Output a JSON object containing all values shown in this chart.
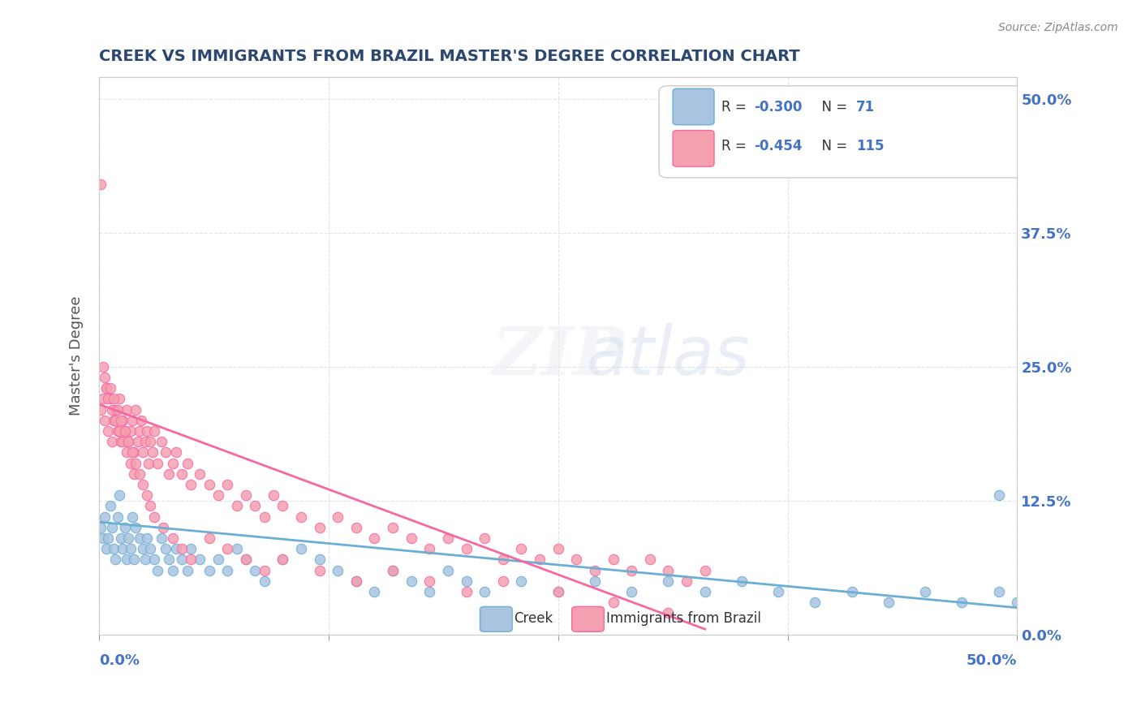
{
  "title": "CREEK VS IMMIGRANTS FROM BRAZIL MASTER'S DEGREE CORRELATION CHART",
  "source": "Source: ZipAtlas.com",
  "ylabel": "Master's Degree",
  "y_tick_labels": [
    "0.0%",
    "12.5%",
    "25.0%",
    "37.5%",
    "50.0%"
  ],
  "y_tick_vals": [
    0,
    0.125,
    0.25,
    0.375,
    0.5
  ],
  "xlim": [
    0.0,
    0.5
  ],
  "ylim": [
    0.0,
    0.52
  ],
  "creek_color": "#a8c4e0",
  "brazil_color": "#f4a0b0",
  "creek_line_color": "#6baed6",
  "brazil_line_color": "#f768a1",
  "creek_R": -0.3,
  "creek_N": 71,
  "brazil_R": -0.454,
  "brazil_N": 115,
  "background_color": "#ffffff",
  "title_color": "#2c4770",
  "axis_label_color": "#4472c4",
  "creek_scatter": {
    "x": [
      0.001,
      0.002,
      0.003,
      0.004,
      0.005,
      0.006,
      0.007,
      0.008,
      0.009,
      0.01,
      0.011,
      0.012,
      0.013,
      0.014,
      0.015,
      0.016,
      0.017,
      0.018,
      0.019,
      0.02,
      0.022,
      0.024,
      0.025,
      0.026,
      0.028,
      0.03,
      0.032,
      0.034,
      0.036,
      0.038,
      0.04,
      0.042,
      0.045,
      0.048,
      0.05,
      0.055,
      0.06,
      0.065,
      0.07,
      0.075,
      0.08,
      0.085,
      0.09,
      0.1,
      0.11,
      0.12,
      0.13,
      0.14,
      0.15,
      0.16,
      0.17,
      0.18,
      0.19,
      0.2,
      0.21,
      0.23,
      0.25,
      0.27,
      0.29,
      0.31,
      0.33,
      0.35,
      0.37,
      0.39,
      0.41,
      0.43,
      0.45,
      0.47,
      0.49,
      0.5,
      0.49
    ],
    "y": [
      0.1,
      0.09,
      0.11,
      0.08,
      0.09,
      0.12,
      0.1,
      0.08,
      0.07,
      0.11,
      0.13,
      0.09,
      0.08,
      0.1,
      0.07,
      0.09,
      0.08,
      0.11,
      0.07,
      0.1,
      0.09,
      0.08,
      0.07,
      0.09,
      0.08,
      0.07,
      0.06,
      0.09,
      0.08,
      0.07,
      0.06,
      0.08,
      0.07,
      0.06,
      0.08,
      0.07,
      0.06,
      0.07,
      0.06,
      0.08,
      0.07,
      0.06,
      0.05,
      0.07,
      0.08,
      0.07,
      0.06,
      0.05,
      0.04,
      0.06,
      0.05,
      0.04,
      0.06,
      0.05,
      0.04,
      0.05,
      0.04,
      0.05,
      0.04,
      0.05,
      0.04,
      0.05,
      0.04,
      0.03,
      0.04,
      0.03,
      0.04,
      0.03,
      0.04,
      0.03,
      0.13
    ]
  },
  "brazil_scatter": {
    "x": [
      0.001,
      0.002,
      0.003,
      0.004,
      0.005,
      0.006,
      0.007,
      0.008,
      0.009,
      0.01,
      0.011,
      0.012,
      0.013,
      0.014,
      0.015,
      0.016,
      0.017,
      0.018,
      0.019,
      0.02,
      0.021,
      0.022,
      0.023,
      0.024,
      0.025,
      0.026,
      0.027,
      0.028,
      0.029,
      0.03,
      0.032,
      0.034,
      0.036,
      0.038,
      0.04,
      0.042,
      0.045,
      0.048,
      0.05,
      0.055,
      0.06,
      0.065,
      0.07,
      0.075,
      0.08,
      0.085,
      0.09,
      0.095,
      0.1,
      0.11,
      0.12,
      0.13,
      0.14,
      0.15,
      0.16,
      0.17,
      0.18,
      0.19,
      0.2,
      0.21,
      0.22,
      0.23,
      0.24,
      0.25,
      0.26,
      0.27,
      0.28,
      0.29,
      0.3,
      0.31,
      0.32,
      0.33,
      0.002,
      0.003,
      0.004,
      0.005,
      0.006,
      0.007,
      0.008,
      0.009,
      0.01,
      0.011,
      0.012,
      0.013,
      0.014,
      0.015,
      0.016,
      0.017,
      0.018,
      0.019,
      0.02,
      0.022,
      0.024,
      0.026,
      0.028,
      0.03,
      0.035,
      0.04,
      0.045,
      0.05,
      0.06,
      0.07,
      0.08,
      0.09,
      0.1,
      0.12,
      0.14,
      0.16,
      0.18,
      0.2,
      0.22,
      0.25,
      0.28,
      0.31,
      0.001
    ],
    "y": [
      0.21,
      0.22,
      0.2,
      0.23,
      0.19,
      0.22,
      0.18,
      0.2,
      0.21,
      0.19,
      0.22,
      0.18,
      0.2,
      0.19,
      0.21,
      0.18,
      0.19,
      0.2,
      0.17,
      0.21,
      0.18,
      0.19,
      0.2,
      0.17,
      0.18,
      0.19,
      0.16,
      0.18,
      0.17,
      0.19,
      0.16,
      0.18,
      0.17,
      0.15,
      0.16,
      0.17,
      0.15,
      0.16,
      0.14,
      0.15,
      0.14,
      0.13,
      0.14,
      0.12,
      0.13,
      0.12,
      0.11,
      0.13,
      0.12,
      0.11,
      0.1,
      0.11,
      0.1,
      0.09,
      0.1,
      0.09,
      0.08,
      0.09,
      0.08,
      0.09,
      0.07,
      0.08,
      0.07,
      0.08,
      0.07,
      0.06,
      0.07,
      0.06,
      0.07,
      0.06,
      0.05,
      0.06,
      0.25,
      0.24,
      0.23,
      0.22,
      0.23,
      0.21,
      0.22,
      0.2,
      0.21,
      0.19,
      0.2,
      0.18,
      0.19,
      0.17,
      0.18,
      0.16,
      0.17,
      0.15,
      0.16,
      0.15,
      0.14,
      0.13,
      0.12,
      0.11,
      0.1,
      0.09,
      0.08,
      0.07,
      0.09,
      0.08,
      0.07,
      0.06,
      0.07,
      0.06,
      0.05,
      0.06,
      0.05,
      0.04,
      0.05,
      0.04,
      0.03,
      0.02,
      0.42
    ]
  },
  "creek_line": {
    "x0": 0.0,
    "y0": 0.105,
    "x1": 0.5,
    "y1": 0.025
  },
  "brazil_line": {
    "x0": 0.0,
    "y0": 0.215,
    "x1": 0.33,
    "y1": 0.005
  }
}
